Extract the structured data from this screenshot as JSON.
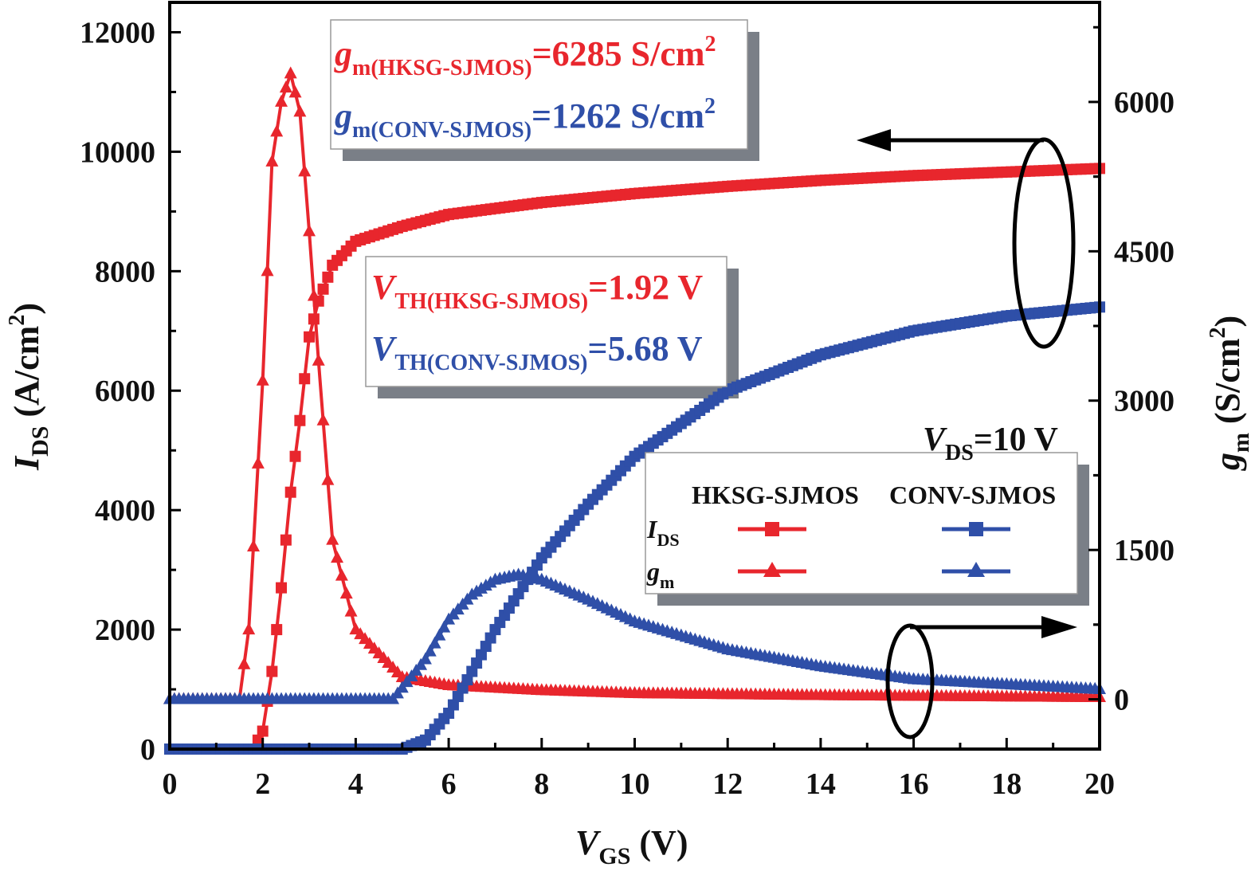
{
  "chart_data": {
    "type": "line",
    "xlabel": {
      "var": "V",
      "sub": "GS",
      "unit": " (V)"
    },
    "ylabel_left": {
      "var": "I",
      "sub": "DS",
      "unit": " (A/cm",
      "sup": "2",
      "end": ")"
    },
    "ylabel_right": {
      "var": "g",
      "sub": "m",
      "unit": " (S/cm",
      "sup": "2",
      "end": ")"
    },
    "xlim": [
      0,
      20
    ],
    "ylim_left": [
      0,
      12500
    ],
    "ylim_right": [
      -500,
      7000
    ],
    "x_ticks": [
      "0",
      "2",
      "4",
      "6",
      "8",
      "10",
      "12",
      "14",
      "16",
      "18",
      "20"
    ],
    "y_left_ticks": [
      "0",
      "2000",
      "4000",
      "6000",
      "8000",
      "10000",
      "12000"
    ],
    "y_right_ticks": [
      "0",
      "1500",
      "3000",
      "4500",
      "6000"
    ],
    "colors": {
      "hksg": "#e8262d",
      "conv": "#2f4fa8"
    },
    "series": [
      {
        "name": "HKSG-SJMOS IDS",
        "axis": "left",
        "marker": "square",
        "color": "#e8262d",
        "x": [
          0,
          1.8,
          2.0,
          2.2,
          2.4,
          2.6,
          2.8,
          3.0,
          3.2,
          3.5,
          4,
          5,
          6,
          8,
          10,
          12,
          14,
          16,
          18,
          20
        ],
        "y": [
          0,
          0,
          300,
          1300,
          2700,
          4300,
          5500,
          6900,
          7500,
          8100,
          8500,
          8750,
          8950,
          9150,
          9300,
          9420,
          9520,
          9600,
          9660,
          9720
        ]
      },
      {
        "name": "HKSG-SJMOS gm",
        "axis": "right",
        "marker": "triangle",
        "color": "#e8262d",
        "x": [
          0,
          1.5,
          1.7,
          2.0,
          2.2,
          2.4,
          2.6,
          2.8,
          3.0,
          3.2,
          3.5,
          4,
          5,
          6,
          8,
          10,
          14,
          20
        ],
        "y": [
          0,
          0,
          700,
          3200,
          5400,
          6000,
          6285,
          5900,
          4700,
          3400,
          1600,
          700,
          220,
          140,
          90,
          60,
          40,
          20
        ]
      },
      {
        "name": "CONV-SJMOS IDS",
        "axis": "left",
        "marker": "square",
        "color": "#2f4fa8",
        "x": [
          0,
          5.0,
          5.5,
          6,
          6.5,
          7,
          7.5,
          8,
          9,
          10,
          11,
          12,
          14,
          16,
          18,
          20
        ],
        "y": [
          0,
          0,
          150,
          600,
          1300,
          2000,
          2600,
          3200,
          4100,
          4900,
          5450,
          6000,
          6600,
          7000,
          7250,
          7400
        ]
      },
      {
        "name": "CONV-SJMOS gm",
        "axis": "right",
        "marker": "triangle",
        "color": "#2f4fa8",
        "x": [
          0,
          4.8,
          5.5,
          6,
          6.5,
          7,
          7.5,
          8,
          9,
          10,
          12,
          14,
          16,
          18,
          20
        ],
        "y": [
          0,
          0,
          400,
          800,
          1050,
          1200,
          1250,
          1200,
          1000,
          780,
          500,
          330,
          200,
          150,
          100
        ]
      }
    ],
    "annotations": {
      "gm_box": [
        {
          "var": "g",
          "sub": "m(HKSG-SJMOS)",
          "text": "=6285 S/cm",
          "sup": "2",
          "color": "hksg"
        },
        {
          "var": "g",
          "sub": "m(CONV-SJMOS)",
          "text": "=1262 S/cm",
          "sup": "2",
          "color": "conv"
        }
      ],
      "vth_box": [
        {
          "var": "V",
          "sub": "TH(HKSG-SJMOS)",
          "text": "=1.92 V",
          "color": "hksg"
        },
        {
          "var": "V",
          "sub": "TH(CONV-SJMOS)",
          "text": "=5.68 V",
          "color": "conv"
        }
      ],
      "vds": {
        "var": "V",
        "sub": "DS",
        "text": "=10 V"
      }
    },
    "legend": {
      "placement": "bottom-right",
      "col1": "HKSG-SJMOS",
      "col2": "CONV-SJMOS",
      "row1": {
        "var": "I",
        "sub": "DS"
      },
      "row2": {
        "var": "g",
        "sub": "m"
      }
    }
  }
}
